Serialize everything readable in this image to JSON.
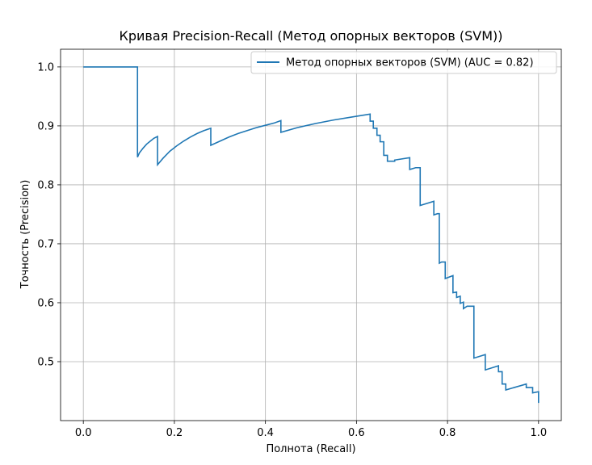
{
  "chart_data": {
    "type": "line",
    "title": "Кривая Precision-Recall (Метод опорных векторов (SVM))",
    "xlabel": "Полнота (Recall)",
    "ylabel": "Точность (Precision)",
    "xlim": [
      -0.05,
      1.05
    ],
    "ylim": [
      0.4,
      1.03
    ],
    "xticks": [
      "0.0",
      "0.2",
      "0.4",
      "0.6",
      "0.8",
      "1.0"
    ],
    "yticks": [
      "0.5",
      "0.6",
      "0.7",
      "0.8",
      "0.9",
      "1.0"
    ],
    "grid": true,
    "legend_position": "top-right",
    "series": [
      {
        "name": "Метод опорных векторов (SVM) (AUC = 0.82)",
        "color": "#1f77b4",
        "x": [
          0.0,
          0.119,
          0.119,
          0.123,
          0.131,
          0.139,
          0.147,
          0.155,
          0.163,
          0.163,
          0.175,
          0.19,
          0.205,
          0.22,
          0.235,
          0.25,
          0.265,
          0.28,
          0.28,
          0.3,
          0.32,
          0.34,
          0.36,
          0.38,
          0.4,
          0.42,
          0.434,
          0.434,
          0.47,
          0.51,
          0.55,
          0.59,
          0.63,
          0.63,
          0.637,
          0.637,
          0.645,
          0.645,
          0.652,
          0.652,
          0.66,
          0.66,
          0.668,
          0.668,
          0.676,
          0.676,
          0.684,
          0.684,
          0.717,
          0.717,
          0.73,
          0.73,
          0.74,
          0.74,
          0.77,
          0.77,
          0.778,
          0.778,
          0.782,
          0.782,
          0.787,
          0.787,
          0.795,
          0.795,
          0.812,
          0.812,
          0.82,
          0.82,
          0.828,
          0.828,
          0.835,
          0.835,
          0.843,
          0.843,
          0.858,
          0.858,
          0.883,
          0.883,
          0.912,
          0.912,
          0.92,
          0.92,
          0.928,
          0.928,
          0.973,
          0.973,
          0.987,
          0.987,
          1.0,
          1.0
        ],
        "y": [
          1.0,
          1.0,
          0.847,
          0.854,
          0.862,
          0.869,
          0.874,
          0.879,
          0.882,
          0.834,
          0.845,
          0.857,
          0.866,
          0.874,
          0.881,
          0.887,
          0.892,
          0.896,
          0.867,
          0.874,
          0.881,
          0.887,
          0.892,
          0.897,
          0.901,
          0.905,
          0.909,
          0.889,
          0.897,
          0.904,
          0.91,
          0.915,
          0.92,
          0.908,
          0.908,
          0.896,
          0.896,
          0.884,
          0.884,
          0.873,
          0.873,
          0.85,
          0.85,
          0.84,
          0.84,
          0.84,
          0.84,
          0.842,
          0.846,
          0.826,
          0.829,
          0.829,
          0.829,
          0.765,
          0.772,
          0.749,
          0.751,
          0.751,
          0.751,
          0.667,
          0.669,
          0.669,
          0.669,
          0.641,
          0.646,
          0.617,
          0.618,
          0.609,
          0.611,
          0.599,
          0.601,
          0.59,
          0.594,
          0.594,
          0.594,
          0.506,
          0.512,
          0.486,
          0.493,
          0.483,
          0.483,
          0.462,
          0.462,
          0.452,
          0.462,
          0.456,
          0.456,
          0.447,
          0.449,
          0.43
        ]
      }
    ]
  }
}
